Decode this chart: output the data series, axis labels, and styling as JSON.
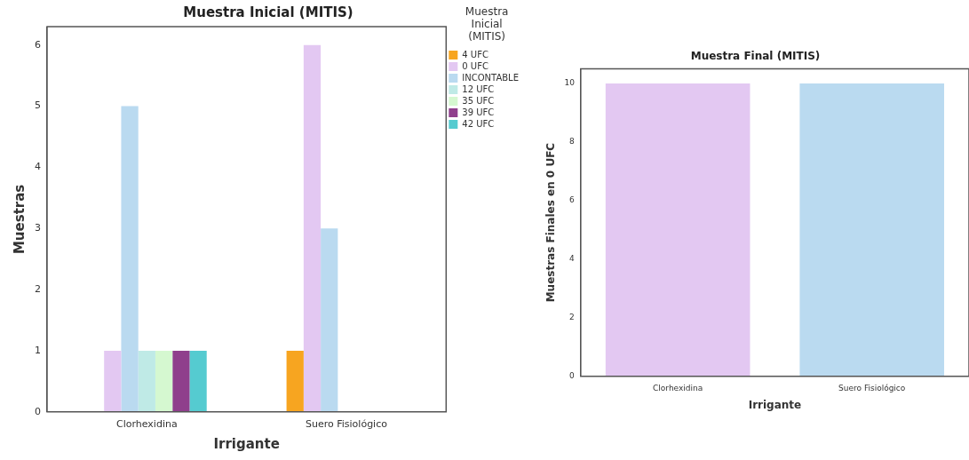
{
  "chart_data": [
    {
      "type": "bar",
      "title": "Muestra Inicial (MITIS)",
      "xlabel": "Irrigante",
      "ylabel": "Muestras",
      "legend_title": "Muestra Inicial (MITIS)",
      "legend": "top right",
      "grid": false,
      "categories": [
        "Clorhexidina",
        "Suero Fisiológico"
      ],
      "ylim": [
        0,
        6.3
      ],
      "yticks": [
        0,
        1,
        2,
        3,
        4,
        5,
        6
      ],
      "series": [
        {
          "name": "4 UFC",
          "color": "#f7a520",
          "values": [
            null,
            1
          ]
        },
        {
          "name": "0 UFC",
          "color": "#e3c8f2",
          "values": [
            1,
            6
          ]
        },
        {
          "name": "INCONTABLE",
          "color": "#badaf0",
          "values": [
            5,
            3
          ]
        },
        {
          "name": "12 UFC",
          "color": "#bfeae6",
          "values": [
            1,
            null
          ]
        },
        {
          "name": "35 UFC",
          "color": "#d5f8d0",
          "values": [
            1,
            null
          ]
        },
        {
          "name": "39 UFC",
          "color": "#8f3f8c",
          "values": [
            1,
            null
          ]
        },
        {
          "name": "42 UFC",
          "color": "#55cbd0",
          "values": [
            1,
            null
          ]
        }
      ]
    },
    {
      "type": "bar",
      "title": "Muestra Final (MITIS)",
      "xlabel": "Irrigante",
      "ylabel": "Muestras Finales en 0 UFC",
      "grid": false,
      "legend": false,
      "categories": [
        "Clorhexidina",
        "Suero Fisiológico"
      ],
      "ylim": [
        0,
        10.5
      ],
      "yticks": [
        0,
        2,
        4,
        6,
        8,
        10
      ],
      "values": [
        10,
        10
      ],
      "colors": [
        "#e3c8f2",
        "#badaf0"
      ]
    }
  ]
}
